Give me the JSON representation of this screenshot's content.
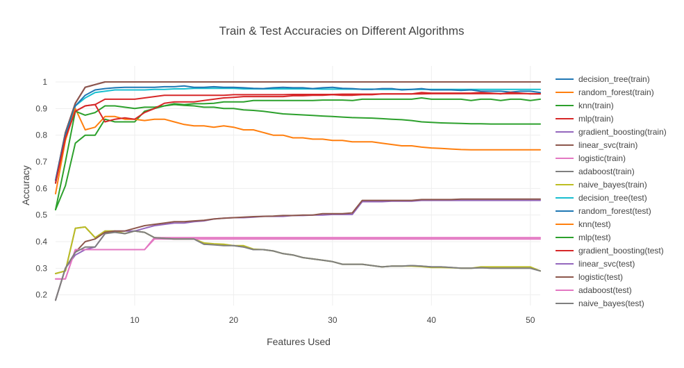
{
  "chart_data": {
    "type": "line",
    "title": "Train & Test Accuracies on Different Algorithms",
    "xlabel": "Features Used",
    "ylabel": "Accuracy",
    "xlim": [
      2,
      51
    ],
    "ylim": [
      0.16,
      1.06
    ],
    "x_ticks": [
      10,
      20,
      30,
      40,
      50
    ],
    "y_ticks": [
      0.2,
      0.3,
      0.4,
      0.5,
      0.6,
      0.7,
      0.8,
      0.9,
      1
    ],
    "y_tick_labels": [
      "0.2",
      "0.3",
      "0.4",
      "0.5",
      "0.6",
      "0.7",
      "0.8",
      "0.9",
      "1"
    ],
    "grid": true,
    "legend_position": "right",
    "x": [
      2,
      3,
      4,
      5,
      6,
      7,
      8,
      9,
      10,
      11,
      12,
      13,
      14,
      15,
      16,
      17,
      18,
      19,
      20,
      21,
      22,
      23,
      24,
      25,
      26,
      27,
      28,
      29,
      30,
      31,
      32,
      33,
      34,
      35,
      36,
      37,
      38,
      39,
      40,
      41,
      42,
      43,
      44,
      45,
      46,
      47,
      48,
      49,
      50,
      51
    ],
    "series": [
      {
        "name": "decision_tree(train)",
        "color": "#1f77b4",
        "values": [
          0.63,
          0.81,
          0.92,
          0.98,
          0.99,
          1,
          1,
          1,
          1,
          1,
          1,
          1,
          1,
          1,
          1,
          1,
          1,
          1,
          1,
          1,
          1,
          1,
          1,
          1,
          1,
          1,
          1,
          1,
          1,
          1,
          1,
          1,
          1,
          1,
          1,
          1,
          1,
          1,
          1,
          1,
          1,
          1,
          1,
          1,
          1,
          1,
          1,
          1,
          1,
          1
        ]
      },
      {
        "name": "random_forest(train)",
        "color": "#ff7f0e",
        "values": [
          0.62,
          0.8,
          0.92,
          0.98,
          0.99,
          1,
          1,
          1,
          1,
          1,
          1,
          1,
          1,
          1,
          1,
          1,
          1,
          1,
          1,
          1,
          1,
          1,
          1,
          1,
          1,
          1,
          1,
          1,
          1,
          1,
          1,
          1,
          1,
          1,
          1,
          1,
          1,
          1,
          1,
          1,
          1,
          1,
          1,
          1,
          1,
          1,
          1,
          1,
          1,
          1
        ]
      },
      {
        "name": "knn(train)",
        "color": "#2ca02c",
        "values": [
          0.52,
          0.61,
          0.77,
          0.8,
          0.8,
          0.86,
          0.85,
          0.85,
          0.85,
          0.89,
          0.9,
          0.91,
          0.915,
          0.912,
          0.91,
          0.905,
          0.905,
          0.9,
          0.9,
          0.895,
          0.893,
          0.89,
          0.885,
          0.88,
          0.878,
          0.876,
          0.874,
          0.872,
          0.87,
          0.868,
          0.866,
          0.865,
          0.864,
          0.862,
          0.86,
          0.858,
          0.855,
          0.85,
          0.848,
          0.846,
          0.845,
          0.844,
          0.843,
          0.843,
          0.842,
          0.842,
          0.842,
          0.842,
          0.842,
          0.842
        ]
      },
      {
        "name": "mlp(train)",
        "color": "#d62728",
        "values": [
          0.62,
          0.79,
          0.89,
          0.91,
          0.915,
          0.935,
          0.935,
          0.935,
          0.935,
          0.94,
          0.945,
          0.95,
          0.95,
          0.95,
          0.95,
          0.95,
          0.95,
          0.95,
          0.952,
          0.952,
          0.952,
          0.952,
          0.952,
          0.952,
          0.953,
          0.953,
          0.953,
          0.953,
          0.953,
          0.954,
          0.954,
          0.954,
          0.954,
          0.955,
          0.955,
          0.955,
          0.955,
          0.955,
          0.956,
          0.956,
          0.956,
          0.956,
          0.956,
          0.956,
          0.956,
          0.956,
          0.956,
          0.956,
          0.956,
          0.956
        ]
      },
      {
        "name": "gradient_boosting(train)",
        "color": "#9467bd",
        "values": [
          0.63,
          0.81,
          0.92,
          0.98,
          0.99,
          1,
          1,
          1,
          1,
          1,
          1,
          1,
          1,
          1,
          1,
          1,
          1,
          1,
          1,
          1,
          1,
          1,
          1,
          1,
          1,
          1,
          1,
          1,
          1,
          1,
          1,
          1,
          1,
          1,
          1,
          1,
          1,
          1,
          1,
          1,
          1,
          1,
          1,
          1,
          1,
          1,
          1,
          1,
          1,
          1
        ]
      },
      {
        "name": "linear_svc(train)",
        "color": "#8c564b",
        "values": [
          0.63,
          0.81,
          0.92,
          0.98,
          0.99,
          1,
          1,
          1,
          1,
          1,
          1,
          1,
          1,
          1,
          1,
          1,
          1,
          1,
          1,
          1,
          1,
          1,
          1,
          1,
          1,
          1,
          1,
          1,
          1,
          1,
          1,
          1,
          1,
          1,
          1,
          1,
          1,
          1,
          1,
          1,
          1,
          1,
          1,
          1,
          1,
          1,
          1,
          1,
          1,
          1
        ]
      },
      {
        "name": "logistic(train)",
        "color": "#e377c2",
        "values": [
          0.26,
          0.26,
          0.37,
          0.37,
          0.37,
          0.37,
          0.37,
          0.37,
          0.37,
          0.37,
          0.415,
          0.415,
          0.415,
          0.415,
          0.415,
          0.415,
          0.415,
          0.415,
          0.415,
          0.415,
          0.415,
          0.415,
          0.415,
          0.415,
          0.415,
          0.415,
          0.415,
          0.415,
          0.415,
          0.415,
          0.415,
          0.415,
          0.415,
          0.415,
          0.415,
          0.415,
          0.415,
          0.415,
          0.415,
          0.415,
          0.415,
          0.415,
          0.415,
          0.415,
          0.415,
          0.415,
          0.415,
          0.415,
          0.415,
          0.415
        ]
      },
      {
        "name": "adaboost(train)",
        "color": "#7f7f7f",
        "values": [
          0.28,
          0.29,
          0.45,
          0.455,
          0.415,
          0.44,
          0.44,
          0.43,
          0.44,
          0.435,
          0.415,
          0.412,
          0.41,
          0.41,
          0.41,
          0.39,
          0.39,
          0.388,
          0.385,
          0.38,
          0.37,
          0.37,
          0.365,
          0.355,
          0.35,
          0.34,
          0.335,
          0.33,
          0.325,
          0.315,
          0.315,
          0.315,
          0.31,
          0.305,
          0.308,
          0.308,
          0.31,
          0.308,
          0.305,
          0.305,
          0.303,
          0.3,
          0.3,
          0.302,
          0.3,
          0.3,
          0.3,
          0.3,
          0.3,
          0.29
        ]
      },
      {
        "name": "naive_bayes(train)",
        "color": "#bcbd22",
        "values": [
          0.28,
          0.29,
          0.45,
          0.455,
          0.415,
          0.44,
          0.44,
          0.43,
          0.44,
          0.435,
          0.415,
          0.412,
          0.41,
          0.41,
          0.41,
          0.395,
          0.392,
          0.39,
          0.385,
          0.385,
          0.372,
          0.37,
          0.365,
          0.355,
          0.35,
          0.34,
          0.335,
          0.33,
          0.325,
          0.315,
          0.315,
          0.315,
          0.31,
          0.305,
          0.308,
          0.308,
          0.308,
          0.306,
          0.303,
          0.303,
          0.302,
          0.3,
          0.3,
          0.305,
          0.305,
          0.305,
          0.305,
          0.305,
          0.305,
          0.29
        ]
      },
      {
        "name": "decision_tree(test)",
        "color": "#17becf",
        "values": [
          0.62,
          0.8,
          0.91,
          0.94,
          0.96,
          0.965,
          0.97,
          0.97,
          0.97,
          0.97,
          0.972,
          0.972,
          0.974,
          0.974,
          0.976,
          0.976,
          0.976,
          0.976,
          0.976,
          0.974,
          0.974,
          0.974,
          0.974,
          0.974,
          0.974,
          0.974,
          0.974,
          0.973,
          0.973,
          0.973,
          0.973,
          0.973,
          0.973,
          0.972,
          0.972,
          0.972,
          0.972,
          0.972,
          0.972,
          0.972,
          0.972,
          0.972,
          0.972,
          0.972,
          0.972,
          0.972,
          0.972,
          0.972,
          0.972,
          0.972
        ]
      },
      {
        "name": "random_forest(test)",
        "color": "#1f77b4",
        "values": [
          0.63,
          0.8,
          0.91,
          0.95,
          0.97,
          0.975,
          0.978,
          0.98,
          0.98,
          0.98,
          0.98,
          0.982,
          0.982,
          0.985,
          0.98,
          0.98,
          0.982,
          0.98,
          0.98,
          0.978,
          0.976,
          0.975,
          0.978,
          0.98,
          0.978,
          0.978,
          0.975,
          0.978,
          0.98,
          0.976,
          0.975,
          0.972,
          0.972,
          0.975,
          0.975,
          0.97,
          0.972,
          0.975,
          0.97,
          0.97,
          0.97,
          0.968,
          0.97,
          0.965,
          0.965,
          0.965,
          0.962,
          0.965,
          0.965,
          0.96
        ]
      },
      {
        "name": "knn(test)",
        "color": "#ff7f0e",
        "values": [
          0.58,
          0.78,
          0.9,
          0.82,
          0.83,
          0.87,
          0.87,
          0.86,
          0.86,
          0.855,
          0.86,
          0.86,
          0.85,
          0.84,
          0.835,
          0.835,
          0.83,
          0.835,
          0.83,
          0.82,
          0.82,
          0.81,
          0.8,
          0.8,
          0.79,
          0.79,
          0.785,
          0.785,
          0.78,
          0.78,
          0.775,
          0.775,
          0.775,
          0.77,
          0.765,
          0.76,
          0.76,
          0.755,
          0.752,
          0.75,
          0.748,
          0.746,
          0.745,
          0.745,
          0.745,
          0.745,
          0.745,
          0.745,
          0.745,
          0.745
        ]
      },
      {
        "name": "mlp(test)",
        "color": "#2ca02c",
        "values": [
          0.52,
          0.7,
          0.89,
          0.875,
          0.885,
          0.91,
          0.91,
          0.905,
          0.9,
          0.905,
          0.905,
          0.91,
          0.918,
          0.915,
          0.918,
          0.918,
          0.92,
          0.925,
          0.925,
          0.925,
          0.93,
          0.93,
          0.93,
          0.93,
          0.93,
          0.93,
          0.93,
          0.932,
          0.932,
          0.932,
          0.93,
          0.935,
          0.935,
          0.935,
          0.935,
          0.935,
          0.935,
          0.94,
          0.935,
          0.935,
          0.935,
          0.935,
          0.93,
          0.935,
          0.935,
          0.93,
          0.935,
          0.935,
          0.93,
          0.935
        ]
      },
      {
        "name": "gradient_boosting(test)",
        "color": "#d62728",
        "values": [
          0.62,
          0.79,
          0.89,
          0.91,
          0.915,
          0.85,
          0.86,
          0.865,
          0.86,
          0.885,
          0.9,
          0.92,
          0.925,
          0.925,
          0.925,
          0.93,
          0.935,
          0.94,
          0.942,
          0.945,
          0.945,
          0.945,
          0.945,
          0.945,
          0.948,
          0.948,
          0.95,
          0.95,
          0.952,
          0.95,
          0.95,
          0.952,
          0.952,
          0.955,
          0.955,
          0.955,
          0.955,
          0.96,
          0.958,
          0.958,
          0.958,
          0.958,
          0.958,
          0.96,
          0.958,
          0.955,
          0.96,
          0.958,
          0.955,
          0.955
        ]
      },
      {
        "name": "linear_svc(test)",
        "color": "#9467bd",
        "values": [
          0.18,
          0.3,
          0.35,
          0.37,
          0.38,
          0.43,
          0.44,
          0.44,
          0.44,
          0.45,
          0.46,
          0.465,
          0.47,
          0.47,
          0.475,
          0.478,
          0.485,
          0.488,
          0.49,
          0.49,
          0.492,
          0.495,
          0.495,
          0.495,
          0.498,
          0.498,
          0.5,
          0.5,
          0.502,
          0.502,
          0.502,
          0.55,
          0.55,
          0.55,
          0.552,
          0.552,
          0.552,
          0.555,
          0.555,
          0.555,
          0.555,
          0.555,
          0.555,
          0.555,
          0.555,
          0.555,
          0.555,
          0.555,
          0.555,
          0.555
        ]
      },
      {
        "name": "logistic(test)",
        "color": "#8c564b",
        "values": [
          0.18,
          0.3,
          0.36,
          0.4,
          0.41,
          0.435,
          0.44,
          0.44,
          0.45,
          0.46,
          0.465,
          0.47,
          0.475,
          0.475,
          0.478,
          0.48,
          0.485,
          0.488,
          0.49,
          0.492,
          0.494,
          0.495,
          0.496,
          0.498,
          0.498,
          0.5,
          0.5,
          0.505,
          0.505,
          0.505,
          0.508,
          0.555,
          0.555,
          0.555,
          0.555,
          0.555,
          0.555,
          0.558,
          0.558,
          0.558,
          0.558,
          0.56,
          0.56,
          0.56,
          0.56,
          0.56,
          0.56,
          0.56,
          0.56,
          0.56
        ]
      },
      {
        "name": "adaboost(test)",
        "color": "#e377c2",
        "values": [
          0.26,
          0.26,
          0.37,
          0.37,
          0.37,
          0.37,
          0.37,
          0.37,
          0.37,
          0.37,
          0.41,
          0.41,
          0.41,
          0.41,
          0.41,
          0.41,
          0.41,
          0.41,
          0.41,
          0.41,
          0.41,
          0.41,
          0.41,
          0.41,
          0.41,
          0.41,
          0.41,
          0.41,
          0.41,
          0.41,
          0.41,
          0.41,
          0.41,
          0.41,
          0.41,
          0.41,
          0.41,
          0.41,
          0.41,
          0.41,
          0.41,
          0.41,
          0.41,
          0.41,
          0.41,
          0.41,
          0.41,
          0.41,
          0.41,
          0.41
        ]
      },
      {
        "name": "naive_bayes(test)",
        "color": "#7f7f7f",
        "values": [
          0.18,
          0.3,
          0.36,
          0.38,
          0.38,
          0.43,
          0.435,
          0.43,
          0.44,
          0.435,
          0.415,
          0.412,
          0.41,
          0.41,
          0.41,
          0.39,
          0.388,
          0.385,
          0.385,
          0.38,
          0.37,
          0.37,
          0.365,
          0.355,
          0.35,
          0.34,
          0.335,
          0.33,
          0.325,
          0.315,
          0.315,
          0.315,
          0.31,
          0.305,
          0.308,
          0.308,
          0.31,
          0.308,
          0.305,
          0.305,
          0.303,
          0.3,
          0.3,
          0.302,
          0.3,
          0.3,
          0.3,
          0.3,
          0.3,
          0.29
        ]
      }
    ]
  }
}
